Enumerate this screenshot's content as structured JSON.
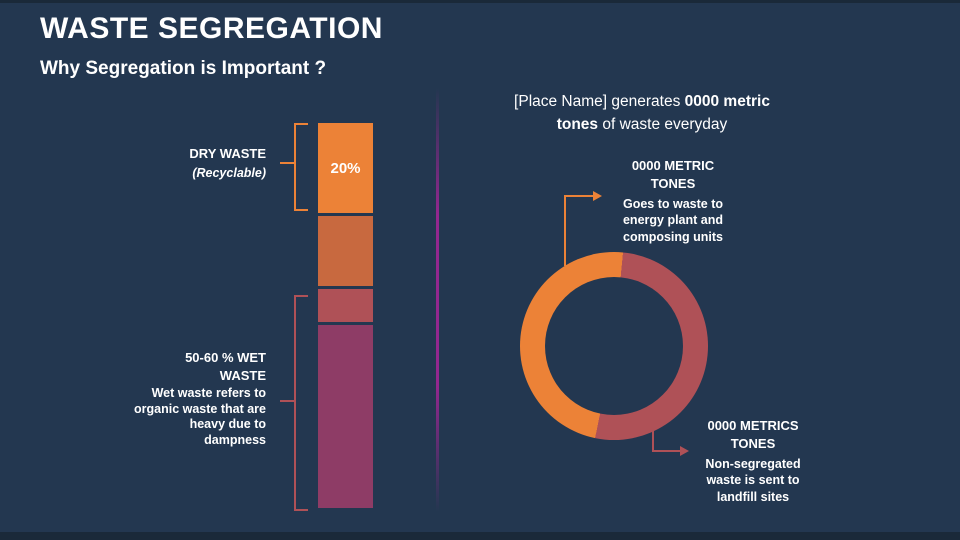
{
  "slide": {
    "title": "WASTE SEGREGATION",
    "subtitle": "Why Segregation is Important ?"
  },
  "colors": {
    "background": "#233750",
    "edge_strip": "#1a2939",
    "orange": "#ec8237",
    "terracotta": "#c8693f",
    "rust": "#af5157",
    "plum": "#8e3c66",
    "divider": "#93278f",
    "text": "#ffffff"
  },
  "left_chart": {
    "dry_title": "DRY WASTE",
    "dry_sub": "(Recyclable)",
    "wet_title": "50-60 % WET WASTE",
    "wet_body": "Wet waste refers to organic waste that are heavy due to dampness"
  },
  "right_chart": {
    "heading": {
      "line1_regular": "[Place Name] generates ",
      "line1_bold": "0000 metric",
      "line2_bold": "tones",
      "line2_regular": " of waste everyday"
    },
    "callout_top_title": "0000 METRIC TONES",
    "callout_top_body": "Goes to waste to energy plant and composing units",
    "callout_bottom_title": "0000 METRICS TONES",
    "callout_bottom_body": "Non-segregated waste is sent to landfill sites"
  },
  "chart_data": [
    {
      "type": "bar",
      "subtype": "single-stacked-column",
      "title": "Waste composition",
      "orientation": "vertical",
      "segments": [
        {
          "name": "dry-waste-recyclable",
          "label_inside": "20%",
          "value_pct": 20,
          "color": "#ec8237",
          "annotation": "DRY WASTE (Recyclable)"
        },
        {
          "name": "other-waste-1",
          "label_inside": "",
          "value_pct": 19,
          "color": "#c8693f",
          "annotation": ""
        },
        {
          "name": "other-waste-2",
          "label_inside": "",
          "value_pct": 9,
          "color": "#af5157",
          "annotation": ""
        },
        {
          "name": "wet-waste",
          "label_inside": "",
          "value_pct": 50,
          "color": "#8e3c66",
          "annotation": "50-60 % WET WASTE - Wet waste refers to organic waste that are heavy due to dampness"
        }
      ],
      "legend": false,
      "axes": false
    },
    {
      "type": "pie",
      "subtype": "donut",
      "title": "[Place Name] generates 0000 metric tones of waste everyday",
      "start_angle_deg": 5.5,
      "slices": [
        {
          "name": "landfill",
          "label": "0000 METRICS TONES",
          "description": "Non-segregated waste is sent to landfill sites",
          "value_pct": 51.7,
          "color": "#af5157"
        },
        {
          "name": "waste-to-energy",
          "label": "0000 METRIC TONES",
          "description": "Goes to waste to energy plant and composing units",
          "value_pct": 48.3,
          "color": "#ec8237"
        }
      ],
      "legend": false
    }
  ]
}
